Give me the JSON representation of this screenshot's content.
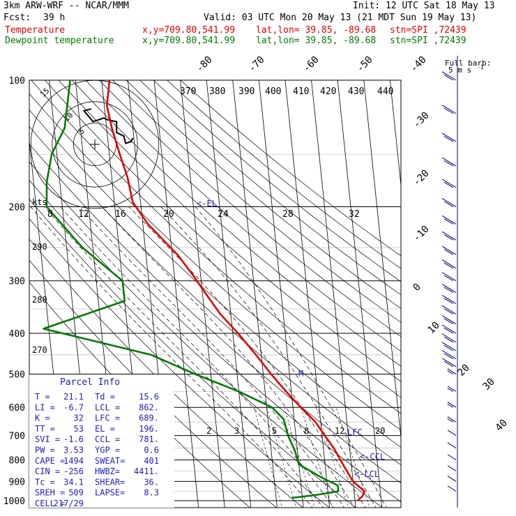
{
  "header": {
    "model": "3km ARW-WRF -- NCAR/MMM",
    "init": "Init: 12 UTC Sat 18 May 13",
    "fcst_label": "Fcst:",
    "fcst_value": "39 h",
    "valid": "Valid: 03 UTC Mon 20 May 13 (21 MDT Sun 19 May 13)",
    "temp_line": {
      "name": "Temperature",
      "xy": "x,y=709.80,541.99",
      "latlon": "lat,lon= 39.85, -89.68",
      "stn": "stn=SPI ,72439"
    },
    "dew_line": {
      "name": "Dewpoint temperature",
      "xy": "x,y=709.80,541.99",
      "latlon": "lat,lon= 39.85, -89.68",
      "stn": "stn=SPI ,72439"
    }
  },
  "colors": {
    "temperature": "#e00000",
    "dewpoint": "#007a00",
    "text": "#000000",
    "barb": "#000070",
    "label_blue": "#2020c0"
  },
  "chart_data": {
    "type": "line",
    "title": "",
    "ylabel": "",
    "pressure_ticks": [
      "100",
      "200",
      "300",
      "400",
      "500",
      "600",
      "700",
      "800",
      "900",
      "1000"
    ],
    "isotherm_labels": [
      "-80",
      "-70",
      "-60",
      "-50",
      "-40",
      "-30",
      "-20",
      "-10",
      "0",
      "10",
      "20",
      "30",
      "40"
    ],
    "theta_labels": [
      "370",
      "380",
      "390",
      "400",
      "410",
      "420",
      "430",
      "440"
    ],
    "mixing_labels": [
      "2",
      "3",
      "5",
      "8",
      "12",
      "20"
    ],
    "hodo_speed_labels": [
      "8",
      "12",
      "16",
      "20",
      "24",
      "28",
      "32"
    ],
    "hodo_kts": "kts",
    "hodo_ring_labels": [
      "5",
      "10",
      "15"
    ],
    "dry_adiabat_labels": [
      "290",
      "280",
      "270"
    ],
    "lfc_label": "LFC",
    "levels": {
      "el_label": "<-EL",
      "lfc_label": "LFC",
      "ccl_label": "<-CCL",
      "lcl_label": "<-LCL",
      "m_label": "M"
    },
    "temperature": {
      "name": "Temperature",
      "points": [
        [
          100,
          -57
        ],
        [
          115,
          -59
        ],
        [
          130,
          -58
        ],
        [
          150,
          -56
        ],
        [
          170,
          -54
        ],
        [
          195,
          -53
        ],
        [
          220,
          -48
        ],
        [
          260,
          -38
        ],
        [
          290,
          -33
        ],
        [
          320,
          -29
        ],
        [
          360,
          -24
        ],
        [
          400,
          -18
        ],
        [
          450,
          -12
        ],
        [
          500,
          -7
        ],
        [
          550,
          -2
        ],
        [
          600,
          3
        ],
        [
          650,
          8
        ],
        [
          700,
          11
        ],
        [
          750,
          14
        ],
        [
          800,
          16
        ],
        [
          850,
          18
        ],
        [
          900,
          20
        ],
        [
          950,
          24
        ],
        [
          975,
          23
        ],
        [
          1000,
          21
        ]
      ]
    },
    "dewpoint": {
      "name": "Dewpoint temperature",
      "points": [
        [
          100,
          -72
        ],
        [
          130,
          -76
        ],
        [
          150,
          -82
        ],
        [
          175,
          -85
        ],
        [
          200,
          -86
        ],
        [
          250,
          -74
        ],
        [
          300,
          -60
        ],
        [
          335,
          -60
        ],
        [
          390,
          -92
        ],
        [
          450,
          -52
        ],
        [
          500,
          -36
        ],
        [
          550,
          -20
        ],
        [
          600,
          -8
        ],
        [
          640,
          -4
        ],
        [
          700,
          -3
        ],
        [
          760,
          -1
        ],
        [
          820,
          0
        ],
        [
          880,
          8
        ],
        [
          920,
          14
        ],
        [
          950,
          14
        ],
        [
          970,
          5
        ],
        [
          985,
          -4
        ]
      ]
    },
    "wind_barbs": {
      "label": "Full barb:",
      "unit": "5 m s",
      "unit_sup": "-1",
      "levels": [
        100,
        120,
        140,
        160,
        180,
        200,
        220,
        240,
        260,
        280,
        300,
        320,
        340,
        360,
        380,
        400,
        420,
        440,
        460,
        480,
        500,
        550,
        600,
        650,
        700,
        750,
        800,
        850,
        900,
        950
      ]
    },
    "hodograph": {
      "points": [
        [
          -4,
          16
        ],
        [
          -12,
          14
        ],
        [
          -2,
          2
        ],
        [
          10,
          6
        ],
        [
          14,
          4
        ],
        [
          24,
          2
        ],
        [
          24,
          -10
        ],
        [
          32,
          -14
        ],
        [
          34,
          -22
        ],
        [
          40,
          -20
        ],
        [
          42,
          -16
        ]
      ]
    }
  },
  "parcel_info": {
    "title": "Parcel Info",
    "rows": [
      [
        "T  =",
        "21.1",
        "Td =",
        "15.6"
      ],
      [
        "LI =",
        "-6.7",
        "LCL =",
        "862."
      ],
      [
        "K  =",
        "32",
        "LFC =",
        "689."
      ],
      [
        "TT =",
        "53",
        "EL  =",
        "196."
      ],
      [
        "SVI =",
        "-1.6",
        "CCL =",
        "781."
      ],
      [
        "PW  =",
        "3.53",
        "YGP =",
        "0.6"
      ],
      [
        "CAPE =",
        "1494",
        "SWEAT=",
        "401"
      ],
      [
        "CIN  =",
        "-256",
        "HWBZ=",
        "4411."
      ],
      [
        "Tc  =",
        "34.1",
        "SHEAR=",
        "36."
      ],
      [
        "SREH =",
        "509",
        "LAPSE=",
        "8.3"
      ],
      [
        "CELL =",
        "217/29",
        "",
        ""
      ]
    ]
  }
}
